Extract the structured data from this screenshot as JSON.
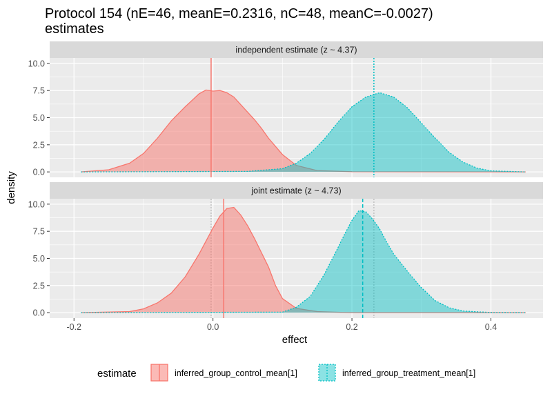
{
  "chart_data": {
    "type": "area",
    "title": "Protocol 154 (nE=46, meanE=0.2316, nC=48, meanC=-0.0027)",
    "subtitle": "estimates",
    "xlabel": "effect",
    "ylabel": "density",
    "xlim": [
      -0.235,
      0.475
    ],
    "ylim": [
      -0.5,
      10.5
    ],
    "x_ticks": [
      -0.2,
      0.0,
      0.2,
      0.4
    ],
    "x_tick_labels": [
      "-0.2",
      "0.0",
      "0.2",
      "0.4"
    ],
    "y_ticks": [
      0,
      2.5,
      5,
      7.5,
      10
    ],
    "y_tick_labels": [
      "0.0",
      "2.5",
      "5.0",
      "7.5",
      "10.0"
    ],
    "grid": true,
    "legend_position": "bottom",
    "legend_title": "estimate",
    "series_names": [
      "inferred_group_control_mean[1]",
      "inferred_group_treatment_mean[1]"
    ],
    "colors": {
      "control": "#f8766d",
      "treatment": "#00bfc4",
      "panel": "#ebebeb",
      "strip": "#d9d9d9",
      "grid": "#ffffff"
    },
    "panels": [
      {
        "strip_label": "independent estimate (z ~  4.37)",
        "series": [
          {
            "name": "inferred_group_control_mean[1]",
            "line_style": "solid",
            "mean_line": -0.0027,
            "mean_line_style": "solid",
            "x": [
              -0.19,
              -0.15,
              -0.12,
              -0.1,
              -0.08,
              -0.06,
              -0.04,
              -0.03,
              -0.02,
              -0.01,
              0.0,
              0.01,
              0.02,
              0.03,
              0.04,
              0.05,
              0.06,
              0.07,
              0.08,
              0.1,
              0.12,
              0.15,
              0.2,
              0.45
            ],
            "y": [
              0.0,
              0.2,
              0.8,
              1.7,
              3.1,
              4.7,
              6.0,
              6.6,
              7.2,
              7.55,
              7.45,
              7.5,
              7.3,
              6.9,
              6.2,
              5.5,
              4.8,
              4.0,
              3.1,
              1.6,
              0.6,
              0.12,
              0.02,
              0.0
            ]
          },
          {
            "name": "inferred_group_treatment_mean[1]",
            "line_style": "dotted",
            "mean_line": 0.2316,
            "mean_line_style": "dotted",
            "x": [
              -0.19,
              0.05,
              0.1,
              0.12,
              0.14,
              0.16,
              0.18,
              0.2,
              0.22,
              0.24,
              0.26,
              0.28,
              0.3,
              0.32,
              0.34,
              0.36,
              0.38,
              0.4,
              0.45
            ],
            "y": [
              0.0,
              0.05,
              0.3,
              0.8,
              1.7,
              3.0,
              4.6,
              6.0,
              6.9,
              7.3,
              6.9,
              5.9,
              4.5,
              3.1,
              1.8,
              0.9,
              0.35,
              0.1,
              0.0
            ]
          }
        ]
      },
      {
        "strip_label": "joint estimate (z ~  4.73)",
        "series": [
          {
            "name": "inferred_group_control_mean[1]",
            "line_style": "solid",
            "mean_line": 0.0155,
            "mean_line_style": "solid",
            "reference_line": -0.0027,
            "x": [
              -0.19,
              -0.12,
              -0.1,
              -0.08,
              -0.06,
              -0.04,
              -0.02,
              0.0,
              0.01,
              0.02,
              0.03,
              0.04,
              0.05,
              0.06,
              0.07,
              0.08,
              0.09,
              0.1,
              0.12,
              0.15,
              0.2,
              0.45
            ],
            "y": [
              0.0,
              0.1,
              0.35,
              0.9,
              1.8,
              3.3,
              5.4,
              7.8,
              8.9,
              9.6,
              9.7,
              9.0,
              8.0,
              6.8,
              5.5,
              4.2,
              2.5,
              1.3,
              0.4,
              0.1,
              0.0,
              0.0
            ]
          },
          {
            "name": "inferred_group_treatment_mean[1]",
            "line_style": "dotted",
            "mean_line": 0.2155,
            "mean_line_style": "dashed",
            "reference_line": 0.2316,
            "x": [
              -0.19,
              0.1,
              0.12,
              0.14,
              0.16,
              0.18,
              0.19,
              0.2,
              0.21,
              0.22,
              0.23,
              0.24,
              0.25,
              0.26,
              0.28,
              0.3,
              0.32,
              0.34,
              0.36,
              0.4,
              0.45
            ],
            "y": [
              0.0,
              0.05,
              0.5,
              1.5,
              3.5,
              6.0,
              7.3,
              8.5,
              9.4,
              9.3,
              8.6,
              7.7,
              6.5,
              5.4,
              3.8,
              2.3,
              1.1,
              0.45,
              0.15,
              0.02,
              0.0
            ]
          }
        ]
      }
    ]
  }
}
